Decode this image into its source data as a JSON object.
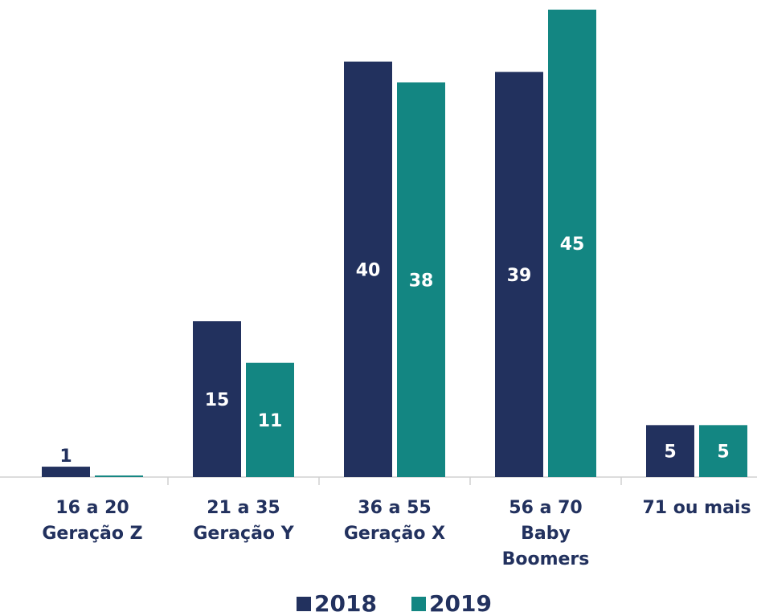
{
  "chart_data": {
    "type": "bar",
    "categories": [
      "16 a 20\nGeração Z",
      "21 a 35\nGeração Y",
      "36 a 55\nGeração X",
      "56 a 70\nBaby\nBoomers",
      "71 ou mais"
    ],
    "series": [
      {
        "name": "2018",
        "color": "#22315e",
        "values": [
          1,
          15,
          40,
          39,
          5
        ]
      },
      {
        "name": "2019",
        "color": "#138682",
        "values": [
          0.15,
          11,
          38,
          45,
          5
        ],
        "value_labels": [
          null,
          "11",
          "38",
          "45",
          "5"
        ]
      }
    ],
    "ylim": [
      0,
      45
    ],
    "grid": false,
    "legend": "bottom"
  }
}
